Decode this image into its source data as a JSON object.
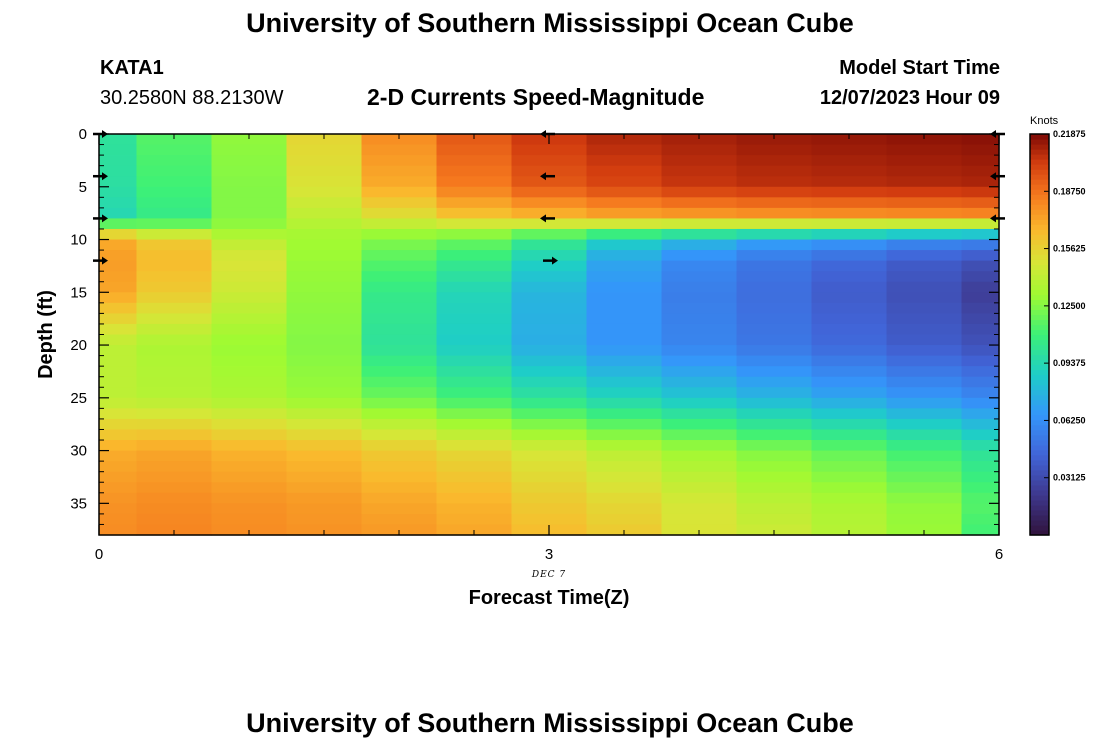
{
  "header": {
    "title": "University of Southern Mississippi Ocean Cube",
    "station_id": "KATA1",
    "station_coords": "30.2580N  88.2130W",
    "plot_title": "2-D Currents Speed-Magnitude",
    "model_start_label": "Model Start Time",
    "model_start_value": "12/07/2023 Hour 09"
  },
  "footer": {
    "title": "University of Southern Mississippi Ocean Cube"
  },
  "chart_data": {
    "type": "heatmap",
    "title": "2-D Currents Speed-Magnitude",
    "xlabel": "Forecast Time(Z)",
    "ylabel": "Depth (ft)",
    "date_label": "DEC 7",
    "xlim": [
      0,
      6
    ],
    "ylim": [
      38,
      0
    ],
    "x_ticks": [
      0,
      3,
      6
    ],
    "y_ticks": [
      0,
      5,
      10,
      15,
      20,
      25,
      30,
      35
    ],
    "colorbar": {
      "title": "Knots",
      "min": 0.0,
      "max": 0.21875,
      "ticks": [
        "0.21875",
        "0.18750",
        "0.15625",
        "0.12500",
        "0.09375",
        "0.06250",
        "0.03125"
      ]
    },
    "time_steps": [
      0,
      0.5,
      1,
      1.5,
      2,
      2.5,
      3,
      3.5,
      4,
      4.5,
      5,
      5.5,
      6
    ],
    "depth_profile_knots": {
      "depths_ft": [
        0,
        5,
        8,
        9,
        10,
        12,
        15,
        20,
        25,
        30,
        35,
        38
      ],
      "columns": [
        [
          0.1,
          0.098,
          0.093,
          0.14,
          0.17,
          0.175,
          0.172,
          0.14,
          0.14,
          0.17,
          0.178,
          0.18
        ],
        [
          0.115,
          0.11,
          0.105,
          0.13,
          0.16,
          0.165,
          0.16,
          0.135,
          0.138,
          0.172,
          0.18,
          0.182
        ],
        [
          0.128,
          0.125,
          0.125,
          0.13,
          0.14,
          0.15,
          0.145,
          0.13,
          0.135,
          0.168,
          0.178,
          0.18
        ],
        [
          0.155,
          0.15,
          0.14,
          0.135,
          0.132,
          0.13,
          0.128,
          0.125,
          0.13,
          0.165,
          0.176,
          0.178
        ],
        [
          0.18,
          0.17,
          0.15,
          0.135,
          0.125,
          0.115,
          0.105,
          0.1,
          0.12,
          0.16,
          0.172,
          0.176
        ],
        [
          0.195,
          0.185,
          0.16,
          0.135,
          0.12,
          0.105,
          0.092,
          0.088,
          0.11,
          0.155,
          0.168,
          0.172
        ],
        [
          0.205,
          0.195,
          0.165,
          0.13,
          0.105,
          0.09,
          0.078,
          0.075,
          0.1,
          0.148,
          0.16,
          0.165
        ],
        [
          0.21,
          0.2,
          0.17,
          0.125,
          0.09,
          0.072,
          0.065,
          0.065,
          0.092,
          0.14,
          0.155,
          0.16
        ],
        [
          0.212,
          0.205,
          0.172,
          0.12,
          0.08,
          0.06,
          0.055,
          0.058,
          0.085,
          0.132,
          0.148,
          0.15
        ],
        [
          0.214,
          0.207,
          0.174,
          0.118,
          0.072,
          0.052,
          0.048,
          0.052,
          0.078,
          0.125,
          0.14,
          0.145
        ],
        [
          0.215,
          0.208,
          0.175,
          0.115,
          0.068,
          0.046,
          0.04,
          0.046,
          0.072,
          0.118,
          0.135,
          0.138
        ],
        [
          0.216,
          0.209,
          0.176,
          0.112,
          0.062,
          0.04,
          0.034,
          0.04,
          0.066,
          0.11,
          0.128,
          0.13
        ],
        [
          0.217,
          0.21,
          0.177,
          0.11,
          0.06,
          0.035,
          0.025,
          0.035,
          0.06,
          0.1,
          0.115,
          0.11
        ]
      ]
    },
    "vectors": [
      {
        "time": 0,
        "depth": 0,
        "dir": "right"
      },
      {
        "time": 0,
        "depth": 4,
        "dir": "right"
      },
      {
        "time": 0,
        "depth": 8,
        "dir": "right"
      },
      {
        "time": 0,
        "depth": 12,
        "dir": "right"
      },
      {
        "time": 3,
        "depth": 0,
        "dir": "left"
      },
      {
        "time": 3,
        "depth": 4,
        "dir": "left"
      },
      {
        "time": 3,
        "depth": 8,
        "dir": "left"
      },
      {
        "time": 3,
        "depth": 12,
        "dir": "right"
      },
      {
        "time": 6,
        "depth": 0,
        "dir": "left"
      },
      {
        "time": 6,
        "depth": 4,
        "dir": "left"
      },
      {
        "time": 6,
        "depth": 8,
        "dir": "left"
      }
    ]
  }
}
